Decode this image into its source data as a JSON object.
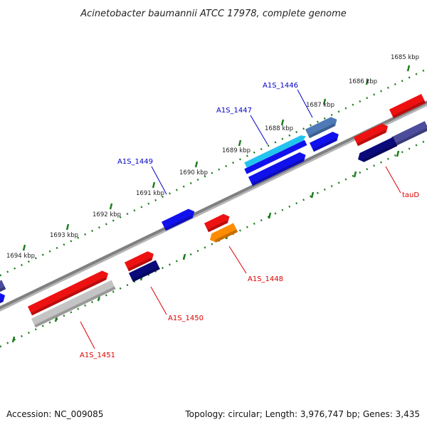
{
  "title": "Acinetobacter baumannii ATCC 17978, complete genome",
  "footer": {
    "accession": "Accession: NC_009085",
    "summary": "Topology: circular; Length: 3,976,747 bp; Genes: 3,435"
  },
  "colors": {
    "backbone": "#808080",
    "ruler": "#1e7d1e",
    "label_blue": "#0000cc",
    "label_red": "#dd0000",
    "gene_red": "#ee1111",
    "gene_blue": "#1111ee",
    "gene_navy": "#0a0a7a",
    "gene_gray": "#c4c4c4",
    "gene_cyan": "#22c4ee",
    "gene_steel": "#4f7ab8",
    "gene_slate": "#4c4c9c",
    "gene_orange": "#ff8c00"
  },
  "scale_ticks": [
    {
      "label": "1685 kbp"
    },
    {
      "label": "1686 kbp"
    },
    {
      "label": "1687 kbp"
    },
    {
      "label": "1688 kbp"
    },
    {
      "label": "1689 kbp"
    },
    {
      "label": "1690 kbp"
    },
    {
      "label": "1691 kbp"
    },
    {
      "label": "1692 kbp"
    },
    {
      "label": "1693 kbp"
    },
    {
      "label": "1694 kbp"
    }
  ],
  "gene_labels": [
    {
      "name": "A1S_1446",
      "strand": "forward"
    },
    {
      "name": "A1S_1447",
      "strand": "forward"
    },
    {
      "name": "A1S_1449",
      "strand": "forward"
    },
    {
      "name": "tauD",
      "strand": "reverse"
    },
    {
      "name": "A1S_1448",
      "strand": "reverse"
    },
    {
      "name": "A1S_1450",
      "strand": "reverse"
    },
    {
      "name": "A1S_1451",
      "strand": "reverse"
    }
  ]
}
